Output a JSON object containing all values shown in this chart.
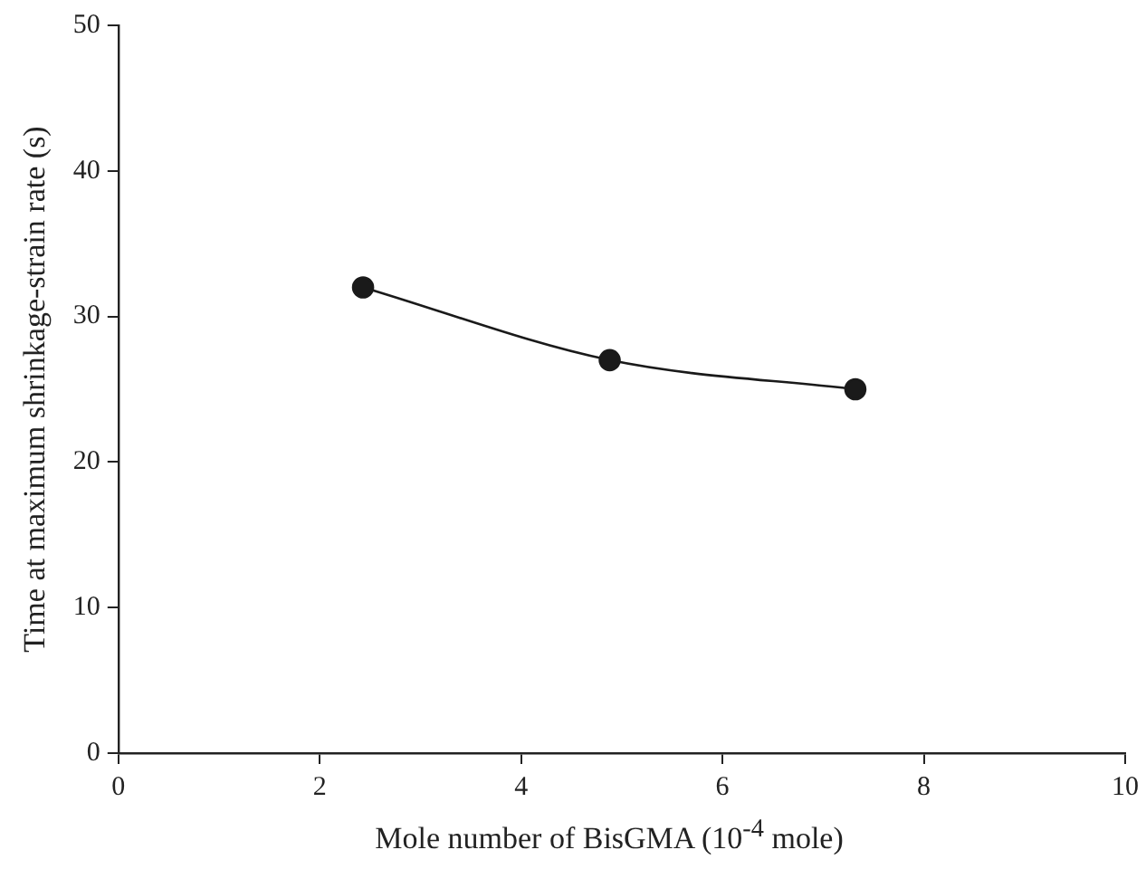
{
  "chart_data": {
    "type": "line",
    "xlabel": "Mole number of BisGMA (10$^{-4}$ mole)",
    "ylabel": "Time at maximum shrinkage-strain rate (s)",
    "x": [
      2.43,
      4.88,
      7.32
    ],
    "series": [
      {
        "color": "#1a1a1a",
        "values": [
          32,
          27,
          25
        ]
      }
    ],
    "xlim": [
      0,
      10
    ],
    "xticks": [
      0,
      2,
      4,
      6,
      8,
      10
    ],
    "ylim": [
      0,
      50
    ],
    "yticks": [
      0,
      10,
      20,
      30,
      40,
      50
    ],
    "grid": false,
    "legend": false,
    "marker": "circle",
    "line_style": "solid"
  }
}
